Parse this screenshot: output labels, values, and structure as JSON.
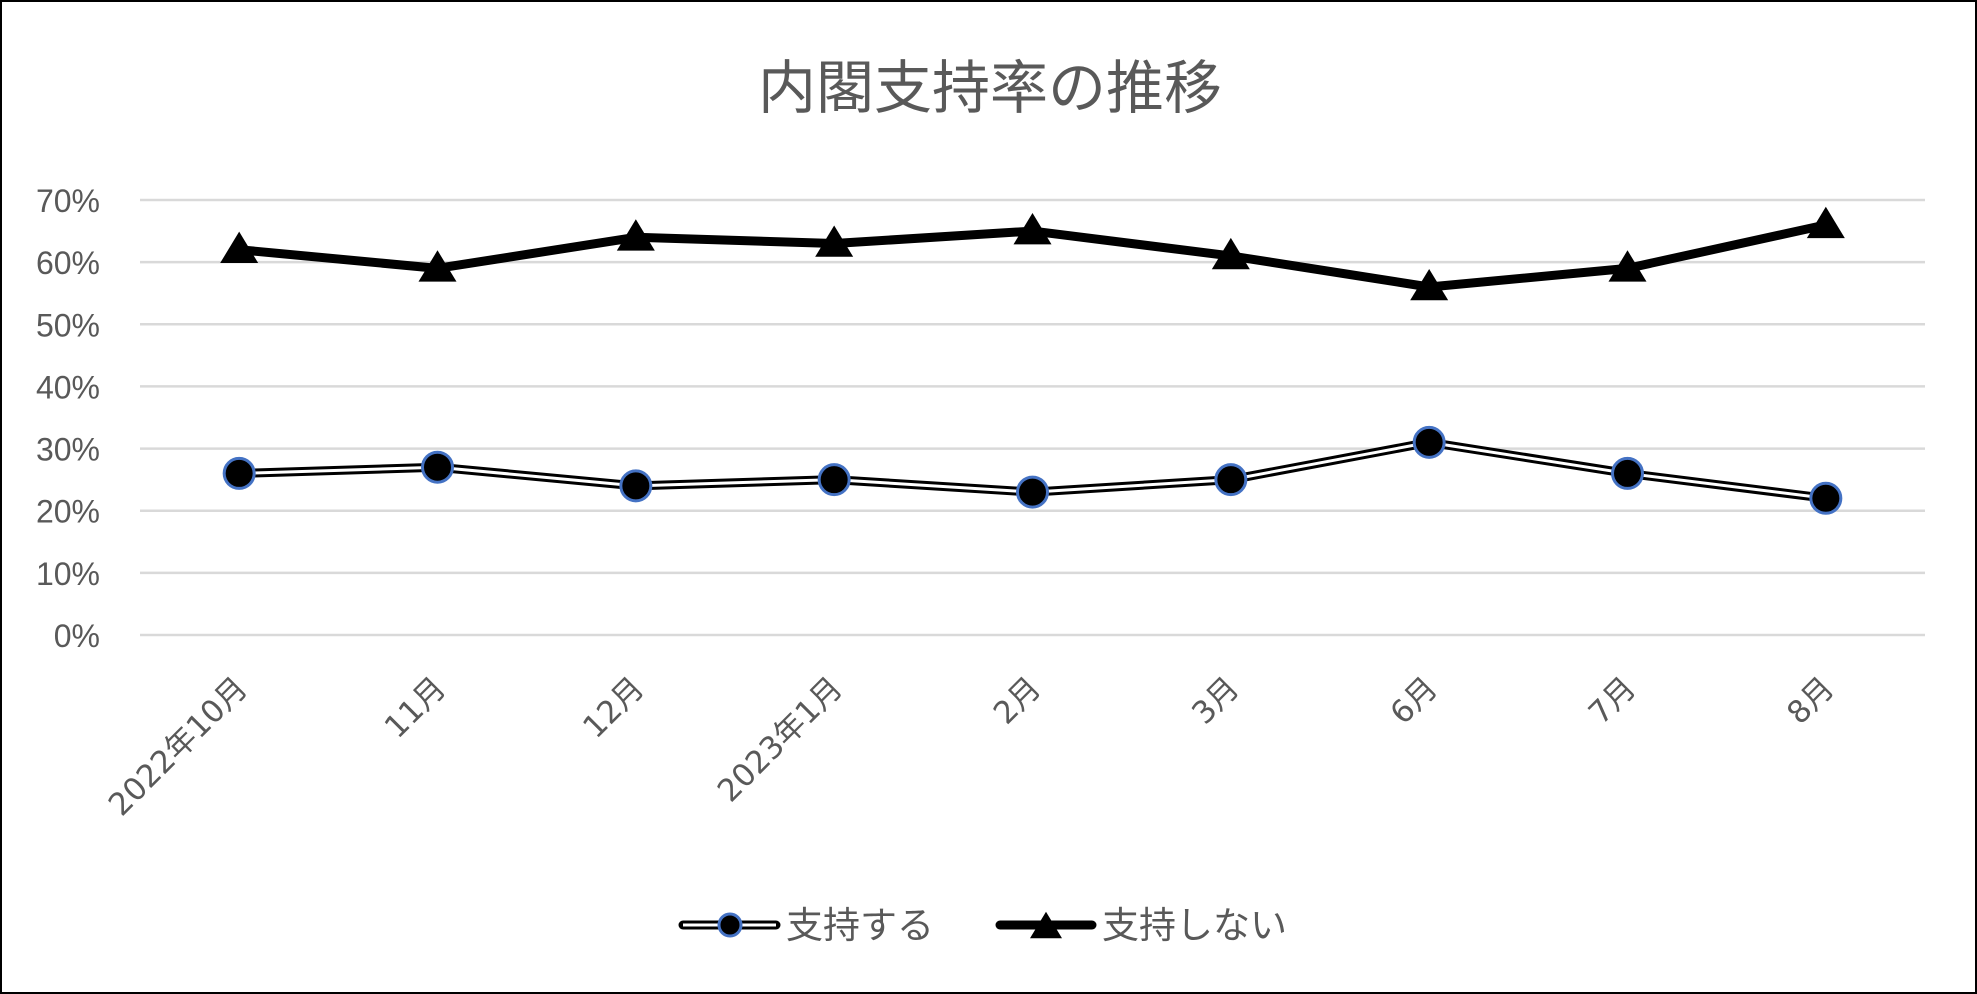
{
  "chart_data": {
    "type": "line",
    "title": "内閣支持率の推移",
    "categories": [
      "2022年10月",
      "11月",
      "12月",
      "2023年1月",
      "2月",
      "3月",
      "6月",
      "7月",
      "8月"
    ],
    "series": [
      {
        "name": "支持する",
        "values": [
          26,
          27,
          24,
          25,
          23,
          25,
          31,
          26,
          22
        ],
        "marker": "circle",
        "line_style": "double",
        "marker_fill": "#000000",
        "marker_edge": "#4472c4"
      },
      {
        "name": "支持しない",
        "values": [
          62,
          59,
          64,
          63,
          65,
          61,
          56,
          59,
          66
        ],
        "marker": "triangle",
        "line_style": "thick",
        "color": "#000000"
      }
    ],
    "yticks": [
      "0%",
      "10%",
      "20%",
      "30%",
      "40%",
      "50%",
      "60%",
      "70%"
    ],
    "ylim": [
      0,
      70
    ],
    "grid": true,
    "legend_position": "bottom"
  }
}
